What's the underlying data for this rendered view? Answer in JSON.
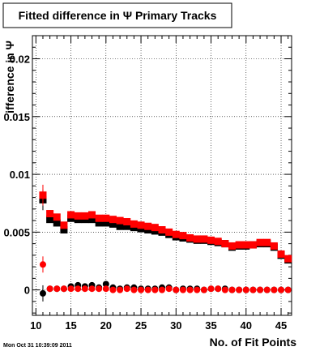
{
  "chart_data": {
    "type": "scatter",
    "title": "Fitted difference in Ψ  Primary Tracks",
    "xlabel": "No. of Fit Points",
    "ylabel": "ifference in Ψ",
    "xlim": [
      9.5,
      46.5
    ],
    "ylim": [
      -0.0022,
      0.022
    ],
    "x_ticks": [
      10,
      15,
      20,
      25,
      30,
      35,
      40,
      45
    ],
    "x_tick_labels": [
      "10",
      "15",
      "20",
      "25",
      "30",
      "35",
      "40",
      "45"
    ],
    "y_ticks": [
      0,
      0.005,
      0.01,
      0.015,
      0.02
    ],
    "y_tick_labels": [
      "0",
      "0.005",
      "0.01",
      "0.015",
      "0.02"
    ],
    "grid": true,
    "legend": null,
    "series": [
      {
        "marker": "square",
        "color": "#000000",
        "x": [
          11,
          12,
          13,
          14,
          15,
          16,
          17,
          18,
          19,
          20,
          21,
          22,
          23,
          24,
          25,
          26,
          27,
          28,
          29,
          30,
          31,
          32,
          33,
          34,
          35,
          36,
          37,
          38,
          39,
          40,
          41,
          42,
          43,
          44,
          45,
          46
        ],
        "y": [
          0.0078,
          0.0061,
          0.0058,
          0.0052,
          0.0062,
          0.0061,
          0.0061,
          0.0061,
          0.0058,
          0.0058,
          0.0057,
          0.0055,
          0.0055,
          0.0054,
          0.0053,
          0.0052,
          0.0051,
          0.005,
          0.0048,
          0.0046,
          0.0045,
          0.0044,
          0.0043,
          0.0043,
          0.0042,
          0.0041,
          0.004,
          0.0037,
          0.0038,
          0.0038,
          0.0039,
          0.004,
          0.004,
          0.0037,
          0.003,
          0.0026
        ],
        "yerr": [
          0.0009,
          0.0003,
          0.0003,
          0.0003,
          0.0002,
          0.0002,
          0.0002,
          0.0002,
          0.0002,
          0.0002,
          0.0002,
          0.0002,
          0.0002,
          0.0002,
          0.0002,
          0.0002,
          0.0002,
          0.0002,
          0.0002,
          0.0002,
          0.0002,
          0.0002,
          0.0002,
          0.0002,
          0.0002,
          0.0002,
          0.0002,
          0.0002,
          0.0002,
          0.0002,
          0.0002,
          0.0002,
          0.0002,
          0.0002,
          0.0002,
          0.0002
        ]
      },
      {
        "marker": "square",
        "color": "#ff0000",
        "x": [
          11,
          12,
          13,
          14,
          15,
          16,
          17,
          18,
          19,
          20,
          21,
          22,
          23,
          24,
          25,
          26,
          27,
          28,
          29,
          30,
          31,
          32,
          33,
          34,
          35,
          36,
          37,
          38,
          39,
          40,
          41,
          42,
          43,
          44,
          45,
          46
        ],
        "y": [
          0.0082,
          0.0066,
          0.0063,
          0.0056,
          0.0065,
          0.0064,
          0.0064,
          0.0065,
          0.0062,
          0.0062,
          0.0061,
          0.006,
          0.0059,
          0.0057,
          0.0056,
          0.0055,
          0.0054,
          0.0052,
          0.005,
          0.0048,
          0.0047,
          0.0045,
          0.0044,
          0.0044,
          0.0043,
          0.0042,
          0.004,
          0.0038,
          0.0039,
          0.0039,
          0.0039,
          0.0041,
          0.0041,
          0.0038,
          0.0031,
          0.0027
        ],
        "yerr": [
          0.0009,
          0.0003,
          0.0003,
          0.0003,
          0.0002,
          0.0002,
          0.0002,
          0.0002,
          0.0002,
          0.0002,
          0.0002,
          0.0002,
          0.0002,
          0.0002,
          0.0002,
          0.0002,
          0.0002,
          0.0002,
          0.0002,
          0.0002,
          0.0002,
          0.0002,
          0.0002,
          0.0002,
          0.0002,
          0.0002,
          0.0002,
          0.0002,
          0.0002,
          0.0002,
          0.0002,
          0.0002,
          0.0002,
          0.0002,
          0.0002,
          0.0002
        ]
      },
      {
        "marker": "circle",
        "color": "#000000",
        "x": [
          11,
          12,
          13,
          14,
          15,
          16,
          17,
          18,
          19,
          20,
          21,
          22,
          23,
          24,
          25,
          26,
          27,
          28,
          29,
          30,
          31,
          32,
          33,
          34,
          35,
          36,
          37,
          38,
          39,
          40,
          41,
          42,
          43,
          44,
          45,
          46
        ],
        "y": [
          -0.0003,
          0.0001,
          0.0001,
          0.0001,
          0.0003,
          0.0004,
          0.0003,
          0.0004,
          0.0002,
          0.0005,
          0.0002,
          0.0001,
          0.0002,
          0.0002,
          0.0001,
          0.0001,
          0.0001,
          0.0002,
          0.0002,
          0.0,
          0.0001,
          0.0001,
          0.0001,
          0.0,
          0.0001,
          0.0001,
          0.0001,
          0.0,
          0.0,
          0.0,
          0.0,
          0.0,
          0.0,
          0.0,
          0.0,
          0.0
        ],
        "yerr": [
          0.0007,
          0.0002,
          0.0002,
          0.0002,
          0.0001,
          0.0001,
          0.0001,
          0.0001,
          0.0001,
          0.0001,
          0.0001,
          0.0001,
          0.0001,
          0.0001,
          0.0001,
          0.0001,
          0.0001,
          0.0001,
          0.0001,
          0.0001,
          0.0001,
          0.0001,
          0.0001,
          0.0001,
          0.0001,
          0.0001,
          0.0001,
          0.0001,
          0.0001,
          0.0001,
          0.0001,
          0.0001,
          0.0001,
          0.0001,
          0.0001,
          0.0001
        ]
      },
      {
        "marker": "circle",
        "color": "#ff0000",
        "x": [
          11,
          12,
          13,
          14,
          15,
          16,
          17,
          18,
          19,
          20,
          21,
          22,
          23,
          24,
          25,
          26,
          27,
          28,
          29,
          30,
          31,
          32,
          33,
          34,
          35,
          36,
          37,
          38,
          39,
          40,
          41,
          42,
          43,
          44,
          45,
          46
        ],
        "y": [
          0.0022,
          0.0001,
          0.0001,
          0.0001,
          0.0001,
          0.0001,
          0.0001,
          0.0001,
          0.0001,
          0.0001,
          0.0,
          0.0,
          0.0001,
          0.0,
          0.0,
          0.0,
          0.0,
          0.0,
          0.0001,
          0.0,
          0.0,
          0.0,
          0.0,
          0.0,
          0.0001,
          0.0001,
          0.0,
          0.0,
          0.0,
          0.0,
          0.0,
          0.0,
          0.0,
          0.0,
          0.0,
          0.0
        ],
        "yerr": [
          0.0007,
          0.0002,
          0.0002,
          0.0002,
          0.0001,
          0.0001,
          0.0001,
          0.0001,
          0.0001,
          0.0001,
          0.0001,
          0.0001,
          0.0001,
          0.0001,
          0.0001,
          0.0001,
          0.0001,
          0.0001,
          0.0001,
          0.0001,
          0.0001,
          0.0001,
          0.0001,
          0.0001,
          0.0001,
          0.0001,
          0.0001,
          0.0001,
          0.0001,
          0.0001,
          0.0001,
          0.0001,
          0.0001,
          0.0001,
          0.0001,
          0.0001
        ]
      }
    ]
  },
  "footer": {
    "timestamp": "Mon Oct 31 10:39:09 2011"
  }
}
